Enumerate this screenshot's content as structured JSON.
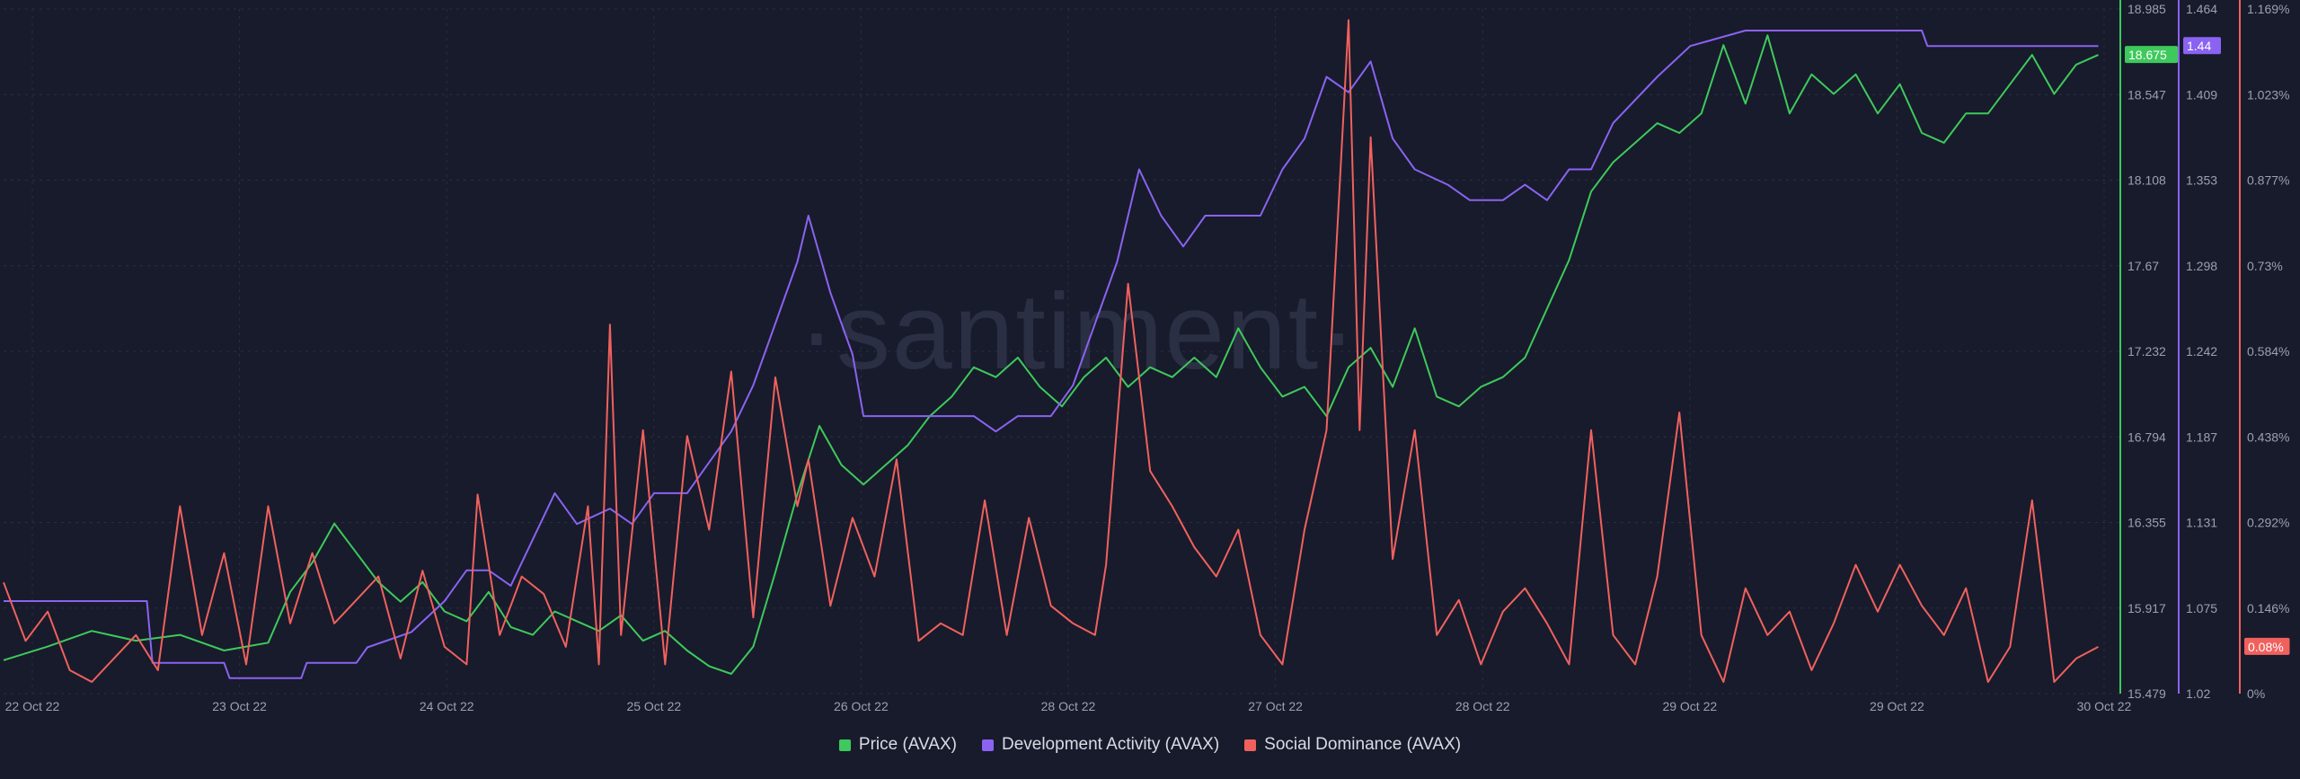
{
  "colors": {
    "price": "#3ec95c",
    "dev": "#8a63f2",
    "social": "#f0615e",
    "background": "#181b2b"
  },
  "watermark": "·santiment·",
  "legend": [
    {
      "label": "Price (AVAX)",
      "color": "#3ec95c"
    },
    {
      "label": "Development Activity (AVAX)",
      "color": "#8a63f2"
    },
    {
      "label": "Social Dominance (AVAX)",
      "color": "#f0615e"
    }
  ],
  "chart_data": {
    "type": "line",
    "x_tick_labels": [
      "22 Oct 22",
      "23 Oct 22",
      "24 Oct 22",
      "25 Oct 22",
      "26 Oct 22",
      "28 Oct 22",
      "27 Oct 22",
      "28 Oct 22",
      "29 Oct 22",
      "29 Oct 22",
      "30 Oct 22"
    ],
    "x_range_hours": [
      0,
      192
    ],
    "grid": true,
    "legend_position": "bottom-center",
    "series": [
      {
        "name": "Price (AVAX)",
        "axis_ticks": [
          "18.985",
          "18.547",
          "18.108",
          "17.67",
          "17.232",
          "16.794",
          "16.355",
          "15.917",
          "15.479"
        ],
        "ylim": [
          15.479,
          18.985
        ],
        "current_label": "18.675",
        "points": [
          [
            0,
            15.65
          ],
          [
            4,
            15.72
          ],
          [
            8,
            15.8
          ],
          [
            12,
            15.75
          ],
          [
            16,
            15.78
          ],
          [
            20,
            15.7
          ],
          [
            24,
            15.74
          ],
          [
            26,
            16.0
          ],
          [
            28,
            16.15
          ],
          [
            30,
            16.35
          ],
          [
            32,
            16.2
          ],
          [
            34,
            16.05
          ],
          [
            36,
            15.95
          ],
          [
            38,
            16.05
          ],
          [
            40,
            15.9
          ],
          [
            42,
            15.85
          ],
          [
            44,
            16.0
          ],
          [
            46,
            15.82
          ],
          [
            48,
            15.78
          ],
          [
            50,
            15.9
          ],
          [
            52,
            15.85
          ],
          [
            54,
            15.8
          ],
          [
            56,
            15.88
          ],
          [
            58,
            15.75
          ],
          [
            60,
            15.8
          ],
          [
            62,
            15.7
          ],
          [
            64,
            15.62
          ],
          [
            66,
            15.58
          ],
          [
            68,
            15.72
          ],
          [
            70,
            16.1
          ],
          [
            72,
            16.5
          ],
          [
            74,
            16.85
          ],
          [
            76,
            16.65
          ],
          [
            78,
            16.55
          ],
          [
            80,
            16.65
          ],
          [
            82,
            16.75
          ],
          [
            84,
            16.9
          ],
          [
            86,
            17.0
          ],
          [
            88,
            17.15
          ],
          [
            90,
            17.1
          ],
          [
            92,
            17.2
          ],
          [
            94,
            17.05
          ],
          [
            96,
            16.95
          ],
          [
            98,
            17.1
          ],
          [
            100,
            17.2
          ],
          [
            102,
            17.05
          ],
          [
            104,
            17.15
          ],
          [
            106,
            17.1
          ],
          [
            108,
            17.2
          ],
          [
            110,
            17.1
          ],
          [
            112,
            17.35
          ],
          [
            114,
            17.15
          ],
          [
            116,
            17.0
          ],
          [
            118,
            17.05
          ],
          [
            120,
            16.9
          ],
          [
            122,
            17.15
          ],
          [
            124,
            17.25
          ],
          [
            126,
            17.05
          ],
          [
            128,
            17.35
          ],
          [
            130,
            17.0
          ],
          [
            132,
            16.95
          ],
          [
            134,
            17.05
          ],
          [
            136,
            17.1
          ],
          [
            138,
            17.2
          ],
          [
            140,
            17.45
          ],
          [
            142,
            17.7
          ],
          [
            144,
            18.05
          ],
          [
            146,
            18.2
          ],
          [
            148,
            18.3
          ],
          [
            150,
            18.4
          ],
          [
            152,
            18.35
          ],
          [
            154,
            18.45
          ],
          [
            156,
            18.8
          ],
          [
            158,
            18.5
          ],
          [
            160,
            18.85
          ],
          [
            162,
            18.45
          ],
          [
            164,
            18.65
          ],
          [
            166,
            18.55
          ],
          [
            168,
            18.65
          ],
          [
            170,
            18.45
          ],
          [
            172,
            18.6
          ],
          [
            174,
            18.35
          ],
          [
            176,
            18.3
          ],
          [
            178,
            18.45
          ],
          [
            180,
            18.45
          ],
          [
            182,
            18.6
          ],
          [
            184,
            18.75
          ],
          [
            186,
            18.55
          ],
          [
            188,
            18.7
          ],
          [
            190,
            18.75
          ]
        ]
      },
      {
        "name": "Development Activity (AVAX)",
        "axis_ticks": [
          "1.464",
          "1.409",
          "1.353",
          "1.298",
          "1.242",
          "1.187",
          "1.131",
          "1.075",
          "1.02"
        ],
        "ylim": [
          1.02,
          1.464
        ],
        "current_label": "1.44",
        "points": [
          [
            0,
            1.08
          ],
          [
            13,
            1.08
          ],
          [
            13.5,
            1.04
          ],
          [
            20,
            1.04
          ],
          [
            20.5,
            1.03
          ],
          [
            27,
            1.03
          ],
          [
            27.5,
            1.04
          ],
          [
            32,
            1.04
          ],
          [
            33,
            1.05
          ],
          [
            37,
            1.06
          ],
          [
            40,
            1.08
          ],
          [
            42,
            1.1
          ],
          [
            44,
            1.1
          ],
          [
            46,
            1.09
          ],
          [
            48,
            1.12
          ],
          [
            50,
            1.15
          ],
          [
            52,
            1.13
          ],
          [
            55,
            1.14
          ],
          [
            57,
            1.13
          ],
          [
            59,
            1.15
          ],
          [
            62,
            1.15
          ],
          [
            64,
            1.17
          ],
          [
            66,
            1.19
          ],
          [
            68,
            1.22
          ],
          [
            70,
            1.26
          ],
          [
            72,
            1.3
          ],
          [
            73,
            1.33
          ],
          [
            75,
            1.28
          ],
          [
            77,
            1.24
          ],
          [
            78,
            1.2
          ],
          [
            80,
            1.2
          ],
          [
            82,
            1.2
          ],
          [
            86,
            1.2
          ],
          [
            88,
            1.2
          ],
          [
            90,
            1.19
          ],
          [
            92,
            1.2
          ],
          [
            95,
            1.2
          ],
          [
            97,
            1.22
          ],
          [
            99,
            1.26
          ],
          [
            101,
            1.3
          ],
          [
            103,
            1.36
          ],
          [
            105,
            1.33
          ],
          [
            107,
            1.31
          ],
          [
            109,
            1.33
          ],
          [
            111,
            1.33
          ],
          [
            114,
            1.33
          ],
          [
            116,
            1.36
          ],
          [
            118,
            1.38
          ],
          [
            120,
            1.42
          ],
          [
            122,
            1.41
          ],
          [
            124,
            1.43
          ],
          [
            126,
            1.38
          ],
          [
            128,
            1.36
          ],
          [
            131,
            1.35
          ],
          [
            133,
            1.34
          ],
          [
            136,
            1.34
          ],
          [
            138,
            1.35
          ],
          [
            140,
            1.34
          ],
          [
            142,
            1.36
          ],
          [
            144,
            1.36
          ],
          [
            146,
            1.39
          ],
          [
            150,
            1.42
          ],
          [
            153,
            1.44
          ],
          [
            158,
            1.45
          ],
          [
            174,
            1.45
          ],
          [
            174.5,
            1.44
          ],
          [
            190,
            1.44
          ]
        ]
      },
      {
        "name": "Social Dominance (AVAX)",
        "axis_ticks": [
          "1.169%",
          "1.023%",
          "0.877%",
          "0.73%",
          "0.584%",
          "0.438%",
          "0.292%",
          "0.146%",
          "0%"
        ],
        "ylim": [
          0,
          1.169
        ],
        "current_label": "0.08%",
        "points": [
          [
            0,
            0.19
          ],
          [
            2,
            0.09
          ],
          [
            4,
            0.14
          ],
          [
            6,
            0.04
          ],
          [
            8,
            0.02
          ],
          [
            10,
            0.06
          ],
          [
            12,
            0.1
          ],
          [
            14,
            0.04
          ],
          [
            16,
            0.32
          ],
          [
            18,
            0.1
          ],
          [
            20,
            0.24
          ],
          [
            22,
            0.05
          ],
          [
            24,
            0.32
          ],
          [
            26,
            0.12
          ],
          [
            28,
            0.24
          ],
          [
            30,
            0.12
          ],
          [
            32,
            0.16
          ],
          [
            34,
            0.2
          ],
          [
            36,
            0.06
          ],
          [
            38,
            0.21
          ],
          [
            40,
            0.08
          ],
          [
            42,
            0.05
          ],
          [
            43,
            0.34
          ],
          [
            45,
            0.1
          ],
          [
            47,
            0.2
          ],
          [
            49,
            0.17
          ],
          [
            51,
            0.08
          ],
          [
            53,
            0.32
          ],
          [
            54,
            0.05
          ],
          [
            55,
            0.63
          ],
          [
            56,
            0.1
          ],
          [
            58,
            0.45
          ],
          [
            60,
            0.05
          ],
          [
            62,
            0.44
          ],
          [
            64,
            0.28
          ],
          [
            66,
            0.55
          ],
          [
            68,
            0.13
          ],
          [
            70,
            0.54
          ],
          [
            72,
            0.32
          ],
          [
            73,
            0.4
          ],
          [
            75,
            0.15
          ],
          [
            77,
            0.3
          ],
          [
            79,
            0.2
          ],
          [
            81,
            0.4
          ],
          [
            83,
            0.09
          ],
          [
            85,
            0.12
          ],
          [
            87,
            0.1
          ],
          [
            89,
            0.33
          ],
          [
            91,
            0.1
          ],
          [
            93,
            0.3
          ],
          [
            95,
            0.15
          ],
          [
            97,
            0.12
          ],
          [
            99,
            0.1
          ],
          [
            100,
            0.22
          ],
          [
            102,
            0.7
          ],
          [
            104,
            0.38
          ],
          [
            106,
            0.32
          ],
          [
            108,
            0.25
          ],
          [
            110,
            0.2
          ],
          [
            112,
            0.28
          ],
          [
            114,
            0.1
          ],
          [
            116,
            0.05
          ],
          [
            118,
            0.28
          ],
          [
            120,
            0.45
          ],
          [
            122,
            1.15
          ],
          [
            123,
            0.45
          ],
          [
            124,
            0.95
          ],
          [
            126,
            0.23
          ],
          [
            128,
            0.45
          ],
          [
            130,
            0.1
          ],
          [
            132,
            0.16
          ],
          [
            134,
            0.05
          ],
          [
            136,
            0.14
          ],
          [
            138,
            0.18
          ],
          [
            140,
            0.12
          ],
          [
            142,
            0.05
          ],
          [
            144,
            0.45
          ],
          [
            146,
            0.1
          ],
          [
            148,
            0.05
          ],
          [
            150,
            0.2
          ],
          [
            152,
            0.48
          ],
          [
            154,
            0.1
          ],
          [
            156,
            0.02
          ],
          [
            158,
            0.18
          ],
          [
            160,
            0.1
          ],
          [
            162,
            0.14
          ],
          [
            164,
            0.04
          ],
          [
            166,
            0.12
          ],
          [
            168,
            0.22
          ],
          [
            170,
            0.14
          ],
          [
            172,
            0.22
          ],
          [
            174,
            0.15
          ],
          [
            176,
            0.1
          ],
          [
            178,
            0.18
          ],
          [
            180,
            0.02
          ],
          [
            182,
            0.08
          ],
          [
            184,
            0.33
          ],
          [
            186,
            0.02
          ],
          [
            188,
            0.06
          ],
          [
            190,
            0.08
          ]
        ]
      }
    ]
  }
}
